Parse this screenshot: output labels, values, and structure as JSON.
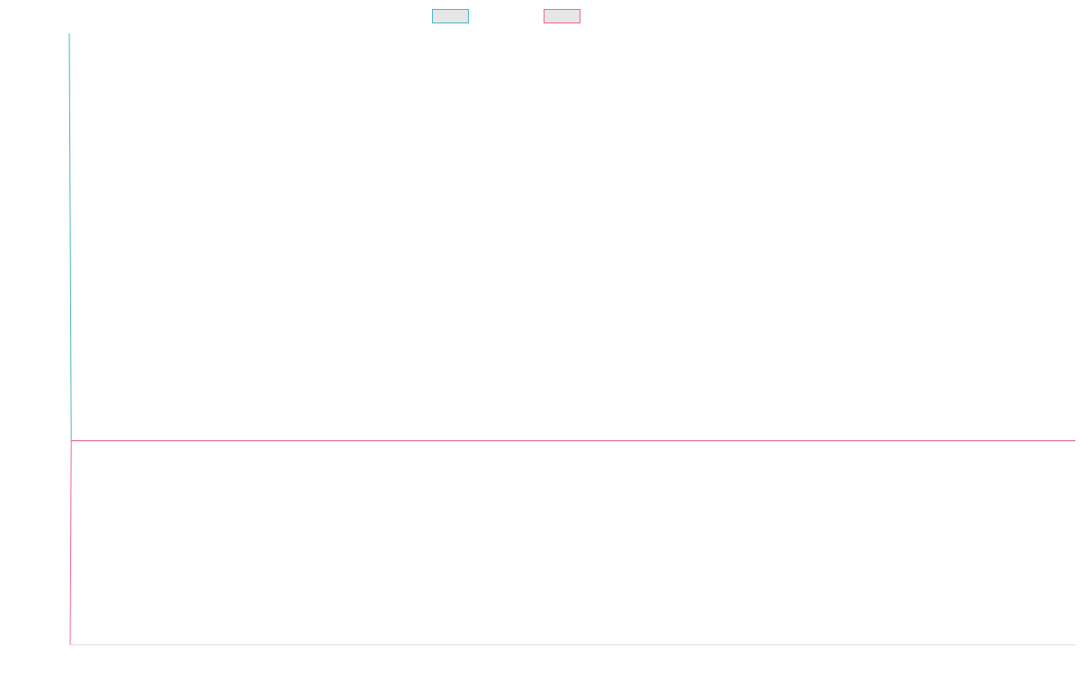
{
  "colors": {
    "series_a": "#4bb5c1",
    "series_b": "#f0668a",
    "swatch_fill": "#e6e6e6",
    "axis": "#e0e0e0"
  },
  "chart_data": {
    "type": "line",
    "x": [
      0,
      1,
      2,
      3,
      4,
      5,
      6,
      7,
      8,
      9,
      10
    ],
    "series": [
      {
        "name": "",
        "color": "#4bb5c1",
        "values": [
          2000,
          0,
          0,
          0,
          0,
          0,
          0,
          0,
          0,
          0,
          0
        ]
      },
      {
        "name": "",
        "color": "#f0668a",
        "values": [
          -1000,
          0,
          0,
          0,
          0,
          0,
          0,
          0,
          0,
          0,
          0
        ]
      }
    ],
    "ylim": [
      -1000,
      2000
    ],
    "xlim": [
      0,
      10
    ],
    "grid": false,
    "legend": "top-center",
    "title": "",
    "xlabel": "",
    "ylabel": ""
  }
}
